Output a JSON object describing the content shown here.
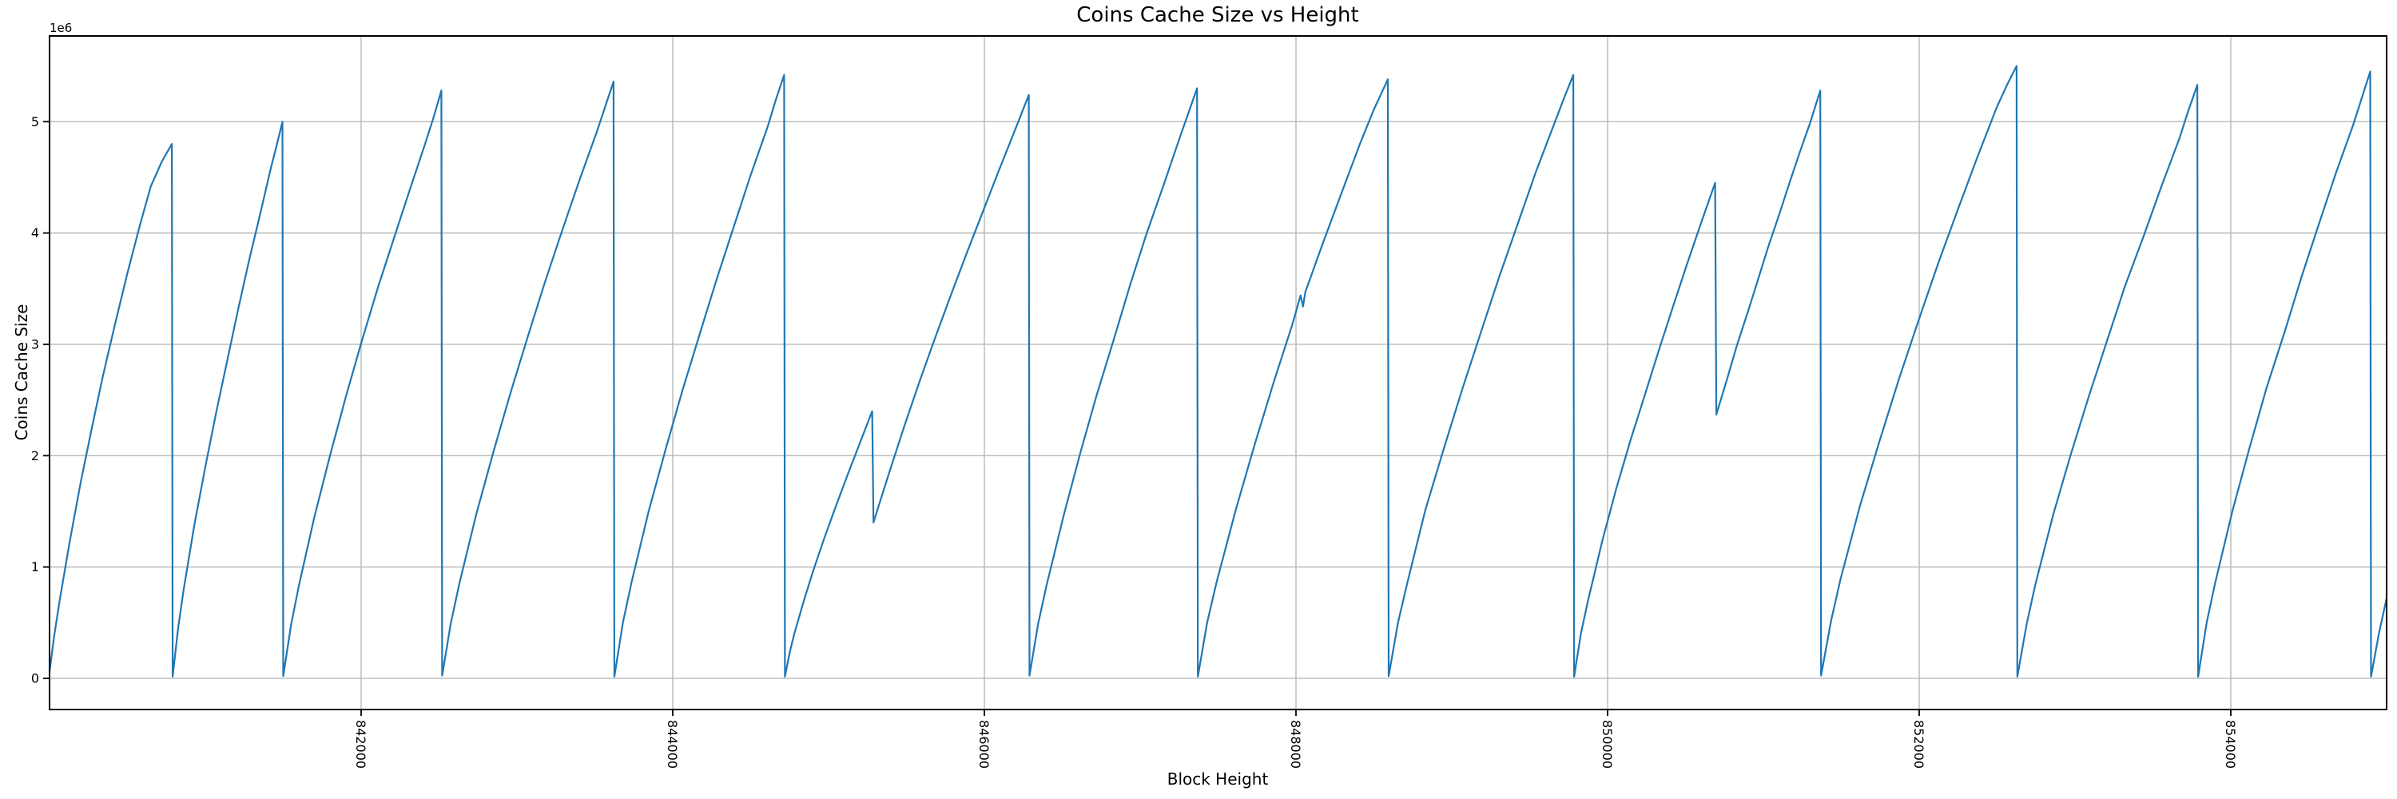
{
  "figure": {
    "background": "#ffffff"
  },
  "chart_data": {
    "type": "line",
    "title": "Coins Cache Size vs Height",
    "xlabel": "Block Height",
    "ylabel": "Coins Cache Size",
    "y_offset_text": "1e6",
    "grid": true,
    "legend": false,
    "xlim": [
      840000,
      855000
    ],
    "ylim": [
      -280000,
      5770000
    ],
    "x_ticks": [
      842000,
      844000,
      846000,
      848000,
      850000,
      852000,
      854000
    ],
    "x_tick_labels": [
      "842000",
      "844000",
      "846000",
      "848000",
      "850000",
      "852000",
      "854000"
    ],
    "y_ticks": [
      0,
      1000000,
      2000000,
      3000000,
      4000000,
      5000000
    ],
    "y_tick_labels": [
      "0",
      "1",
      "2",
      "3",
      "4",
      "5"
    ],
    "colors": {
      "line": "#1f77b4",
      "grid": "#b9b9b9",
      "spine": "#000000",
      "text": "#000000",
      "background": "#ffffff"
    },
    "points": [
      [
        840000,
        60000
      ],
      [
        840030,
        380000
      ],
      [
        840065,
        700000
      ],
      [
        840130,
        1230000
      ],
      [
        840200,
        1760000
      ],
      [
        840270,
        2240000
      ],
      [
        840340,
        2700000
      ],
      [
        840420,
        3180000
      ],
      [
        840500,
        3640000
      ],
      [
        840580,
        4070000
      ],
      [
        840650,
        4420000
      ],
      [
        840720,
        4640000
      ],
      [
        840785,
        4800000
      ],
      [
        840790,
        15000
      ],
      [
        840825,
        450000
      ],
      [
        840860,
        790000
      ],
      [
        840930,
        1380000
      ],
      [
        841000,
        1900000
      ],
      [
        841070,
        2390000
      ],
      [
        841140,
        2850000
      ],
      [
        841210,
        3310000
      ],
      [
        841280,
        3750000
      ],
      [
        841350,
        4160000
      ],
      [
        841420,
        4580000
      ],
      [
        841460,
        4800000
      ],
      [
        841495,
        5000000
      ],
      [
        841500,
        20000
      ],
      [
        841550,
        480000
      ],
      [
        841600,
        830000
      ],
      [
        841700,
        1450000
      ],
      [
        841800,
        2000000
      ],
      [
        841900,
        2520000
      ],
      [
        842000,
        3010000
      ],
      [
        842110,
        3520000
      ],
      [
        842210,
        3950000
      ],
      [
        842310,
        4380000
      ],
      [
        842410,
        4800000
      ],
      [
        842465,
        5040000
      ],
      [
        842515,
        5280000
      ],
      [
        842520,
        25000
      ],
      [
        842575,
        490000
      ],
      [
        842630,
        850000
      ],
      [
        842740,
        1480000
      ],
      [
        842850,
        2040000
      ],
      [
        842960,
        2570000
      ],
      [
        843070,
        3070000
      ],
      [
        843180,
        3560000
      ],
      [
        843290,
        4020000
      ],
      [
        843400,
        4470000
      ],
      [
        843510,
        4900000
      ],
      [
        843565,
        5130000
      ],
      [
        843620,
        5360000
      ],
      [
        843625,
        15000
      ],
      [
        843680,
        500000
      ],
      [
        843735,
        860000
      ],
      [
        843845,
        1500000
      ],
      [
        843955,
        2060000
      ],
      [
        844065,
        2600000
      ],
      [
        844175,
        3100000
      ],
      [
        844285,
        3600000
      ],
      [
        844395,
        4070000
      ],
      [
        844500,
        4520000
      ],
      [
        844610,
        4960000
      ],
      [
        844660,
        5190000
      ],
      [
        844715,
        5420000
      ],
      [
        844720,
        15000
      ],
      [
        844750,
        230000
      ],
      [
        844780,
        400000
      ],
      [
        844840,
        690000
      ],
      [
        844900,
        960000
      ],
      [
        844970,
        1250000
      ],
      [
        845040,
        1520000
      ],
      [
        845120,
        1820000
      ],
      [
        845200,
        2110000
      ],
      [
        845280,
        2400000
      ],
      [
        845288,
        1400000
      ],
      [
        845390,
        1850000
      ],
      [
        845490,
        2280000
      ],
      [
        845590,
        2690000
      ],
      [
        845690,
        3080000
      ],
      [
        845790,
        3460000
      ],
      [
        845890,
        3830000
      ],
      [
        845990,
        4190000
      ],
      [
        846090,
        4550000
      ],
      [
        846190,
        4900000
      ],
      [
        846285,
        5240000
      ],
      [
        846290,
        25000
      ],
      [
        846345,
        490000
      ],
      [
        846400,
        840000
      ],
      [
        846510,
        1470000
      ],
      [
        846615,
        2020000
      ],
      [
        846720,
        2540000
      ],
      [
        846830,
        3040000
      ],
      [
        846935,
        3530000
      ],
      [
        847040,
        3990000
      ],
      [
        847150,
        4430000
      ],
      [
        847255,
        4860000
      ],
      [
        847310,
        5080000
      ],
      [
        847365,
        5300000
      ],
      [
        847370,
        15000
      ],
      [
        847430,
        500000
      ],
      [
        847490,
        860000
      ],
      [
        847615,
        1520000
      ],
      [
        847735,
        2100000
      ],
      [
        847855,
        2650000
      ],
      [
        847975,
        3170000
      ],
      [
        848030,
        3440000
      ],
      [
        848045,
        3340000
      ],
      [
        848060,
        3470000
      ],
      [
        848170,
        3900000
      ],
      [
        848290,
        4350000
      ],
      [
        848410,
        4800000
      ],
      [
        848500,
        5110000
      ],
      [
        848590,
        5380000
      ],
      [
        848595,
        20000
      ],
      [
        848655,
        500000
      ],
      [
        848715,
        860000
      ],
      [
        848830,
        1510000
      ],
      [
        848950,
        2070000
      ],
      [
        849070,
        2610000
      ],
      [
        849190,
        3120000
      ],
      [
        849305,
        3610000
      ],
      [
        849425,
        4090000
      ],
      [
        849540,
        4550000
      ],
      [
        849660,
        4990000
      ],
      [
        849720,
        5210000
      ],
      [
        849780,
        5420000
      ],
      [
        849785,
        15000
      ],
      [
        849830,
        410000
      ],
      [
        849875,
        700000
      ],
      [
        849965,
        1230000
      ],
      [
        850055,
        1700000
      ],
      [
        850145,
        2130000
      ],
      [
        850240,
        2550000
      ],
      [
        850330,
        2950000
      ],
      [
        850420,
        3340000
      ],
      [
        850510,
        3720000
      ],
      [
        850600,
        4090000
      ],
      [
        850645,
        4270000
      ],
      [
        850690,
        4450000
      ],
      [
        850698,
        2370000
      ],
      [
        850765,
        2680000
      ],
      [
        850830,
        2990000
      ],
      [
        850900,
        3290000
      ],
      [
        850965,
        3580000
      ],
      [
        851030,
        3870000
      ],
      [
        851100,
        4160000
      ],
      [
        851165,
        4440000
      ],
      [
        851230,
        4710000
      ],
      [
        851300,
        4990000
      ],
      [
        851365,
        5280000
      ],
      [
        851370,
        25000
      ],
      [
        851435,
        520000
      ],
      [
        851495,
        890000
      ],
      [
        851620,
        1550000
      ],
      [
        851745,
        2130000
      ],
      [
        851870,
        2690000
      ],
      [
        851995,
        3210000
      ],
      [
        852120,
        3720000
      ],
      [
        852245,
        4200000
      ],
      [
        852370,
        4670000
      ],
      [
        852495,
        5120000
      ],
      [
        852560,
        5320000
      ],
      [
        852625,
        5500000
      ],
      [
        852630,
        15000
      ],
      [
        852690,
        490000
      ],
      [
        852745,
        840000
      ],
      [
        852860,
        1470000
      ],
      [
        852975,
        2020000
      ],
      [
        853090,
        2540000
      ],
      [
        853205,
        3030000
      ],
      [
        853320,
        3520000
      ],
      [
        853440,
        3970000
      ],
      [
        853555,
        4420000
      ],
      [
        853670,
        4850000
      ],
      [
        853725,
        5090000
      ],
      [
        853785,
        5330000
      ],
      [
        853790,
        15000
      ],
      [
        853845,
        500000
      ],
      [
        853900,
        860000
      ],
      [
        854010,
        1500000
      ],
      [
        854120,
        2070000
      ],
      [
        854230,
        2610000
      ],
      [
        854345,
        3110000
      ],
      [
        854455,
        3610000
      ],
      [
        854565,
        4080000
      ],
      [
        854675,
        4540000
      ],
      [
        854785,
        4970000
      ],
      [
        854840,
        5210000
      ],
      [
        854895,
        5450000
      ],
      [
        854900,
        15000
      ],
      [
        854950,
        400000
      ],
      [
        855000,
        720000
      ]
    ]
  }
}
